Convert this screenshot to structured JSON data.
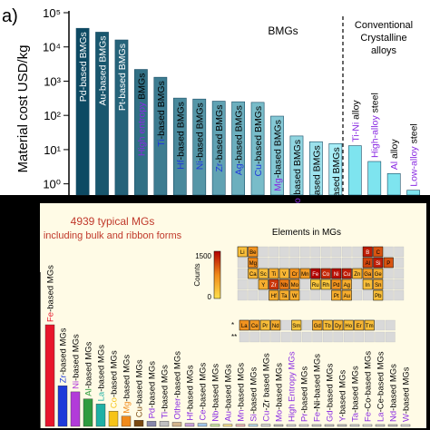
{
  "colors": {
    "bmg_gradient_dark": "#0d4a63",
    "bmg_gradient_light": "#a8eef7",
    "conventional_bar": "#7ee4ef",
    "panel_b_background": "#000000",
    "panel_b_inner": "#fffbe6",
    "panel_b_title": "#c0392b",
    "heat_low": "#ffe14d",
    "heat_mid": "#f08a1a",
    "heat_high": "#b30000",
    "label_black": "#000000",
    "label_blue": "#1f3bd9",
    "label_purple": "#8a2be2"
  },
  "chart_data": [
    {
      "panel_label": "a)",
      "type": "bar",
      "ylabel": "Material cost USD/kg",
      "yscale": "log",
      "ylim": [
        0.5,
        100000
      ],
      "ytick_labels": [
        "10⁰",
        "10¹",
        "10²",
        "10³",
        "10⁴",
        "10⁵"
      ],
      "ytick_values": [
        1,
        10,
        100,
        1000,
        10000,
        100000
      ],
      "group_labels": {
        "bmgs": "BMGs",
        "conventional_line1": "Conventional",
        "conventional_line2": "Crystalline",
        "conventional_line3": "alloys"
      },
      "categories": [
        {
          "element": "Pd",
          "suffix": "-based BMGs",
          "element_color": "blue",
          "value": 35000,
          "group": "bmgs"
        },
        {
          "element": "Au",
          "suffix": "-based BMGs",
          "element_color": "blue",
          "value": 27000,
          "group": "bmgs"
        },
        {
          "element": "Pt",
          "suffix": "-based BMGs",
          "element_color": "blue",
          "value": 16000,
          "group": "bmgs"
        },
        {
          "element": "High entropy",
          "suffix": " BMGs",
          "element_color": "purple",
          "value": 2200,
          "group": "bmgs"
        },
        {
          "element": "Ti",
          "suffix": "-based BMGs",
          "element_color": "blue",
          "value": 1300,
          "group": "bmgs"
        },
        {
          "element": "Hf",
          "suffix": "-based BMGs",
          "element_color": "blue",
          "value": 320,
          "group": "bmgs"
        },
        {
          "element": "Ni",
          "suffix": "-based BMGs",
          "element_color": "blue",
          "value": 300,
          "group": "bmgs"
        },
        {
          "element": "Zr",
          "suffix": "-based BMGs",
          "element_color": "blue",
          "value": 260,
          "group": "bmgs"
        },
        {
          "element": "Ag",
          "suffix": "-based BMGs",
          "element_color": "blue",
          "value": 250,
          "group": "bmgs"
        },
        {
          "element": "Cu",
          "suffix": "-based BMGs",
          "element_color": "blue",
          "value": 240,
          "group": "bmgs"
        },
        {
          "element": "Mg",
          "suffix": "-based BMGs",
          "element_color": "purple",
          "value": 95,
          "group": "bmgs"
        },
        {
          "element": "Co",
          "suffix": "-based BMGs",
          "element_color": "purple",
          "value": 25,
          "group": "bmgs"
        },
        {
          "element": "La",
          "suffix": "-based BMGs",
          "element_color": "blue",
          "value": 17,
          "group": "bmgs"
        },
        {
          "element": "Fe",
          "suffix": "-based BMGs",
          "element_color": "blue",
          "value": 15,
          "group": "bmgs"
        },
        {
          "element": "Ti-Ni",
          "suffix": " alloy",
          "element_color": "purple",
          "value": 13,
          "group": "conventional"
        },
        {
          "element": "High-alloy",
          "suffix": " steel",
          "element_color": "purple",
          "value": 4.5,
          "group": "conventional"
        },
        {
          "element": "Al",
          "suffix": " alloy",
          "element_color": "purple",
          "value": 2,
          "group": "conventional"
        },
        {
          "element": "Low-alloy",
          "suffix": " steel",
          "element_color": "purple",
          "value": 0.65,
          "group": "conventional"
        }
      ]
    },
    {
      "type": "bar",
      "title_line1": "4939 typical MGs",
      "title_line2": "including bulk and ribbon forms",
      "categories": [
        {
          "label": "Fe-based MGs",
          "color": "#e8162b",
          "rel": 1.0
        },
        {
          "label": "Zr-based MGs",
          "color": "#1f3bd9",
          "rel": 0.4
        },
        {
          "label": "Ni-based MGs",
          "color": "#b23bd9",
          "rel": 0.34
        },
        {
          "label": "Al-based MGs",
          "color": "#2f9b3e",
          "rel": 0.27
        },
        {
          "label": "La-based MGs",
          "color": "#1fb0a5",
          "rel": 0.22
        },
        {
          "label": "Co-based MGs",
          "color": "#f6c417",
          "rel": 0.15
        },
        {
          "label": "Mg-based MGs",
          "color": "#f08a1a",
          "rel": 0.1
        },
        {
          "label": "Cu-based MGs",
          "color": "#7a4a12",
          "rel": 0.06
        },
        {
          "label": "Pd-based MGs",
          "color": "#8888aa",
          "rel": 0.05
        },
        {
          "label": "Ti-based MGs",
          "color": "#bfbfbf",
          "rel": 0.05
        },
        {
          "label": "Other-based MGs",
          "color": "#d2b48c",
          "rel": 0.04
        },
        {
          "label": "Hf-based MGs",
          "color": "#c9a0dc",
          "rel": 0.03
        },
        {
          "label": "Ce-based MGs",
          "color": "#a0c4e8",
          "rel": 0.03
        },
        {
          "label": "Nb-based MGs",
          "color": "#c8e6a0",
          "rel": 0.02
        },
        {
          "label": "Au-based MGs",
          "color": "#f5e08a",
          "rel": 0.02
        },
        {
          "label": "Mn-based MGs",
          "color": "#e8b4b4",
          "rel": 0.02
        },
        {
          "label": "Si-based MGs",
          "color": "#b4d8e8",
          "rel": 0.02
        },
        {
          "label": "Cu-Zr based MGs",
          "color": "#d4d4d4",
          "rel": 0.02
        },
        {
          "label": "Mo-based MGs",
          "color": "#bdbdbd",
          "rel": 0.015
        },
        {
          "label": "High Entropy MGs",
          "color": "#dcdcdc",
          "rel": 0.015
        },
        {
          "label": "Pr-based MGs",
          "color": "#e0e0e0",
          "rel": 0.015
        },
        {
          "label": "Fe-Ni-based MGs",
          "color": "#d0d0d0",
          "rel": 0.015
        },
        {
          "label": "Gd-based MGs",
          "color": "#cccccc",
          "rel": 0.015
        },
        {
          "label": "Y-based MGs",
          "color": "#c8c8c8",
          "rel": 0.01
        },
        {
          "label": "Ta-based MGs",
          "color": "#d8d8d8",
          "rel": 0.01
        },
        {
          "label": "Fe-Co-based MGs",
          "color": "#e4e4e4",
          "rel": 0.01
        },
        {
          "label": "La-Ce-based MGs",
          "color": "#d0d0d0",
          "rel": 0.01
        },
        {
          "label": "Nd-based MGs",
          "color": "#c4c4c4",
          "rel": 0.01
        },
        {
          "label": "W-based MGs",
          "color": "#e0e0e0",
          "rel": 0.01
        }
      ],
      "inset": {
        "title": "Elements in MGs",
        "colorbar_label": "Counts",
        "colorbar_ticks": [
          "1500",
          "0"
        ],
        "row_markers": [
          "*",
          "**"
        ],
        "elements": [
          {
            "sym": "Li",
            "row": 0,
            "col": 0,
            "heat": 0.2
          },
          {
            "sym": "Be",
            "row": 0,
            "col": 1,
            "heat": 0.45
          },
          {
            "sym": "B",
            "row": 0,
            "col": 12,
            "heat": 0.9
          },
          {
            "sym": "C",
            "row": 0,
            "col": 13,
            "heat": 0.7
          },
          {
            "sym": "P",
            "row": 1,
            "col": 14,
            "heat": 0.7
          },
          {
            "sym": "Mg",
            "row": 1,
            "col": 1,
            "heat": 0.5
          },
          {
            "sym": "Al",
            "row": 1,
            "col": 12,
            "heat": 0.75
          },
          {
            "sym": "Si",
            "row": 1,
            "col": 13,
            "heat": 0.9
          },
          {
            "sym": "Ca",
            "row": 2,
            "col": 1,
            "heat": 0.25
          },
          {
            "sym": "Sc",
            "row": 2,
            "col": 2,
            "heat": 0.2
          },
          {
            "sym": "Ti",
            "row": 2,
            "col": 3,
            "heat": 0.3
          },
          {
            "sym": "V",
            "row": 2,
            "col": 4,
            "heat": 0.25
          },
          {
            "sym": "Cr",
            "row": 2,
            "col": 5,
            "heat": 0.45
          },
          {
            "sym": "Mn",
            "row": 2,
            "col": 6,
            "heat": 0.4
          },
          {
            "sym": "Fe",
            "row": 2,
            "col": 7,
            "heat": 1.0
          },
          {
            "sym": "Co",
            "row": 2,
            "col": 8,
            "heat": 0.85
          },
          {
            "sym": "Ni",
            "row": 2,
            "col": 9,
            "heat": 0.95
          },
          {
            "sym": "Cu",
            "row": 2,
            "col": 10,
            "heat": 0.9
          },
          {
            "sym": "Zn",
            "row": 2,
            "col": 11,
            "heat": 0.25
          },
          {
            "sym": "Ga",
            "row": 2,
            "col": 12,
            "heat": 0.4
          },
          {
            "sym": "Ge",
            "row": 2,
            "col": 13,
            "heat": 0.3
          },
          {
            "sym": "Y",
            "row": 3,
            "col": 2,
            "heat": 0.3
          },
          {
            "sym": "Zr",
            "row": 3,
            "col": 3,
            "heat": 0.8
          },
          {
            "sym": "Nb",
            "row": 3,
            "col": 4,
            "heat": 0.55
          },
          {
            "sym": "Mo",
            "row": 3,
            "col": 5,
            "heat": 0.4
          },
          {
            "sym": "Ru",
            "row": 3,
            "col": 7,
            "heat": 0.15
          },
          {
            "sym": "Rh",
            "row": 3,
            "col": 8,
            "heat": 0.15
          },
          {
            "sym": "Pd",
            "row": 3,
            "col": 9,
            "heat": 0.45
          },
          {
            "sym": "Ag",
            "row": 3,
            "col": 10,
            "heat": 0.3
          },
          {
            "sym": "In",
            "row": 3,
            "col": 12,
            "heat": 0.2
          },
          {
            "sym": "Sn",
            "row": 3,
            "col": 13,
            "heat": 0.3
          },
          {
            "sym": "Hf",
            "row": 4,
            "col": 3,
            "heat": 0.3
          },
          {
            "sym": "Ta",
            "row": 4,
            "col": 4,
            "heat": 0.3
          },
          {
            "sym": "W",
            "row": 4,
            "col": 5,
            "heat": 0.3
          },
          {
            "sym": "Pt",
            "row": 4,
            "col": 9,
            "heat": 0.3
          },
          {
            "sym": "Au",
            "row": 4,
            "col": 10,
            "heat": 0.3
          },
          {
            "sym": "Pb",
            "row": 4,
            "col": 13,
            "heat": 0.2
          }
        ],
        "lanthanides": [
          {
            "sym": "La",
            "heat": 0.45
          },
          {
            "sym": "Ce",
            "heat": 0.4
          },
          {
            "sym": "Pr",
            "heat": 0.2
          },
          {
            "sym": "Nd",
            "heat": 0.3
          },
          {
            "sym": "Sm",
            "heat": 0.15
          },
          {
            "sym": "Gd",
            "heat": 0.3
          },
          {
            "sym": "Tb",
            "heat": 0.2
          },
          {
            "sym": "Dy",
            "heat": 0.25
          },
          {
            "sym": "Ho",
            "heat": 0.2
          },
          {
            "sym": "Er",
            "heat": 0.25
          },
          {
            "sym": "Tm",
            "heat": 0.2
          }
        ]
      }
    }
  ]
}
